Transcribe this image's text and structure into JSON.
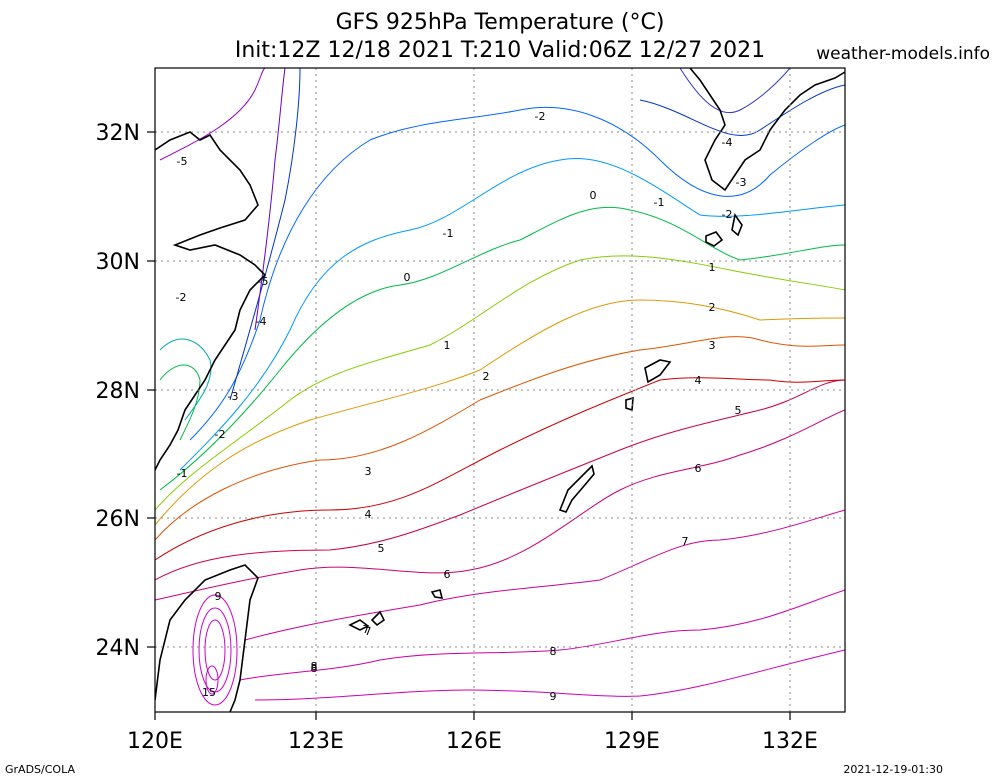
{
  "header": {
    "title_line1": "GFS 925hPa Temperature (°C)",
    "title_line2": "Init:12Z 12/18 2021 T:210 Valid:06Z 12/27 2021",
    "site": "weather-models.info"
  },
  "footer": {
    "left": "GrADS/COLA",
    "right": "2021-12-19-01:30"
  },
  "axes": {
    "lon_labels": [
      "120E",
      "123E",
      "126E",
      "129E",
      "132E"
    ],
    "lat_labels": [
      "32N",
      "30N",
      "28N",
      "26N",
      "24N"
    ]
  },
  "contour_labels": [
    {
      "text": "-5",
      "c": "#9900cc"
    },
    {
      "text": "-5",
      "c": "#9900cc"
    },
    {
      "text": "-4",
      "c": "#6600cc"
    },
    {
      "text": "-2",
      "c": "#0066ff"
    },
    {
      "text": "-3",
      "c": "#0033cc"
    },
    {
      "text": "-2",
      "c": "#0099ff"
    },
    {
      "text": "-1",
      "c": "#00bbaa"
    },
    {
      "text": "0",
      "c": "#00bb44"
    },
    {
      "text": "1",
      "c": "#88cc00"
    },
    {
      "text": "2",
      "c": "#dd9900"
    },
    {
      "text": "3",
      "c": "#dd5500"
    },
    {
      "text": "4",
      "c": "#cc0000"
    },
    {
      "text": "5",
      "c": "#cc0044"
    },
    {
      "text": "6",
      "c": "#cc0077"
    },
    {
      "text": "7",
      "c": "#cc0099"
    },
    {
      "text": "8",
      "c": "#cc00aa"
    },
    {
      "text": "9",
      "c": "#cc00bb"
    },
    {
      "text": "15",
      "c": "#cc00cc"
    },
    {
      "text": "-2",
      "c": "#0066ff"
    },
    {
      "text": "-1",
      "c": "#0099ff"
    },
    {
      "text": "0",
      "c": "#00bb44"
    },
    {
      "text": "-4",
      "c": "#3333cc"
    },
    {
      "text": "-3",
      "c": "#0033cc"
    },
    {
      "text": "-2",
      "c": "#0066ff"
    },
    {
      "text": "-1",
      "c": "#0099ff"
    },
    {
      "text": "1",
      "c": "#88cc00"
    },
    {
      "text": "2",
      "c": "#dd9900"
    },
    {
      "text": "3",
      "c": "#dd5500"
    },
    {
      "text": "4",
      "c": "#cc0000"
    },
    {
      "text": "5",
      "c": "#cc0044"
    },
    {
      "text": "6",
      "c": "#cc0077"
    },
    {
      "text": "7",
      "c": "#cc0099"
    },
    {
      "text": "8",
      "c": "#cc00aa"
    },
    {
      "text": "9",
      "c": "#cc00bb"
    },
    {
      "text": "7",
      "c": "#cc0099"
    },
    {
      "text": "8",
      "c": "#cc00aa"
    }
  ]
}
